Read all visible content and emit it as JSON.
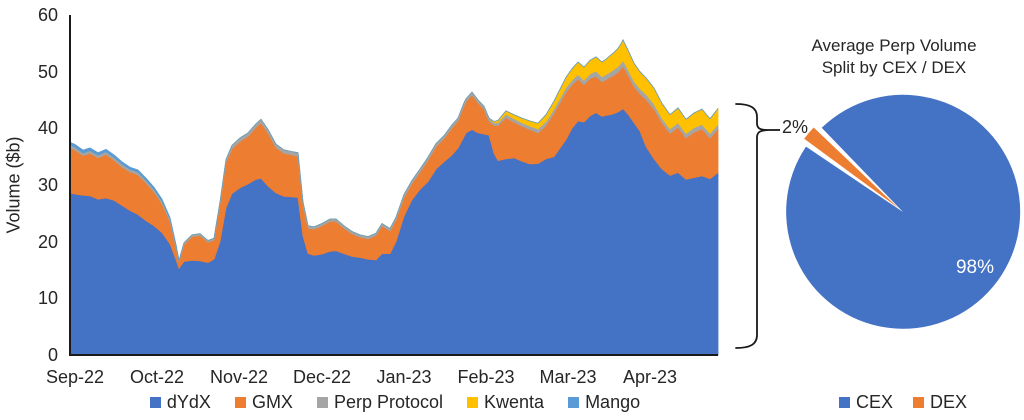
{
  "page": {
    "background": "#ffffff"
  },
  "chart_data": [
    {
      "type": "area",
      "stacked": true,
      "title": "",
      "xlabel": "",
      "ylabel": "Volume ($b)",
      "ylim": [
        0,
        60
      ],
      "grid": false,
      "legend_position": "bottom",
      "y_tick_labels": [
        "60",
        "50",
        "40",
        "30",
        "20",
        "10",
        "0"
      ],
      "x_tick_labels": [
        "Sep-22",
        "Oct-22",
        "Nov-22",
        "Dec-22",
        "Jan-23",
        "Feb-23",
        "Mar-23",
        "Apr-23"
      ],
      "x_unit": "time from Sep-2022 to Apr-2023, sampled ~every 3 days (plot-offset units)",
      "x": [
        0,
        5,
        13,
        20,
        28,
        36,
        44,
        52,
        60,
        68,
        76,
        84,
        92,
        100,
        106,
        109,
        114,
        122,
        130,
        138,
        144,
        150,
        156,
        162,
        170,
        178,
        186,
        191,
        198,
        206,
        214,
        222,
        228,
        233,
        238,
        244,
        252,
        260,
        266,
        274,
        282,
        290,
        298,
        306,
        312,
        320,
        326,
        334,
        342,
        350,
        358,
        366,
        374,
        382,
        388,
        394,
        396,
        402,
        408,
        414,
        419,
        424,
        428,
        436,
        444,
        452,
        460,
        468,
        476,
        484,
        490,
        496,
        502,
        508,
        514,
        520,
        526,
        532,
        536,
        540,
        544,
        548,
        551,
        553,
        558,
        564,
        570,
        576,
        584,
        592,
        600,
        608,
        616,
        624,
        632,
        640,
        648
      ],
      "series": [
        {
          "name": "dYdX",
          "color": "#4472C4",
          "values": [
            28.6,
            28.4,
            28.2,
            28.1,
            27.5,
            27.7,
            27.3,
            26.4,
            25.5,
            24.8,
            23.7,
            22.8,
            21.6,
            19.6,
            16.8,
            15.3,
            16.5,
            16.7,
            16.6,
            16.3,
            16.9,
            20,
            26,
            28.5,
            29.5,
            30.2,
            31,
            31.2,
            29.8,
            28.6,
            28,
            27.9,
            27.8,
            21,
            17.9,
            17.6,
            17.8,
            18.3,
            18.4,
            17.9,
            17.4,
            17.2,
            16.9,
            16.8,
            17.9,
            17.9,
            20,
            24.5,
            27.4,
            29.2,
            30.6,
            32.8,
            34.1,
            35.3,
            36.5,
            38.5,
            39.2,
            39.8,
            39.2,
            39,
            38.8,
            35.6,
            34.3,
            34.6,
            34.8,
            34.2,
            33.7,
            33.8,
            34.6,
            35,
            36.5,
            38,
            40,
            41.3,
            41.1,
            42.2,
            42.8,
            42.1,
            42.3,
            42.4,
            42.6,
            42.9,
            43.2,
            43.5,
            42.5,
            41,
            39.5,
            36.8,
            34.6,
            32.8,
            31.7,
            32.2,
            31,
            31.3,
            31.6,
            31.1,
            32.2
          ]
        },
        {
          "name": "GMX",
          "color": "#ED7D31",
          "values": [
            8,
            7.8,
            7,
            7.5,
            7.3,
            7.7,
            7.1,
            6.8,
            6.8,
            7,
            6.7,
            6,
            5.1,
            4,
            2.2,
            1.1,
            3,
            4.2,
            4.5,
            3.6,
            3.4,
            6.6,
            8,
            7.9,
            8.2,
            8.4,
            9.2,
            9.8,
            9.4,
            8,
            7.6,
            7.4,
            7.3,
            5.5,
            4.5,
            4.6,
            5,
            5.3,
            5.2,
            4.5,
            4,
            3.6,
            3.6,
            4.3,
            4.9,
            4,
            3.9,
            3.3,
            2.9,
            3.1,
            3.8,
            4,
            4.1,
            4.8,
            4.8,
            5.5,
            5.5,
            6.1,
            5.3,
            4.4,
            2.5,
            4.9,
            6.2,
            7.3,
            6.3,
            6.2,
            6.1,
            5.4,
            5.9,
            7.7,
            8,
            8.4,
            7.7,
            7.4,
            6.6,
            6.6,
            6.4,
            6.1,
            6.3,
            6.6,
            6.8,
            7,
            7.3,
            7.5,
            6.9,
            6.4,
            6.6,
            8.3,
            8.8,
            8.2,
            7.4,
            8,
            7.3,
            8,
            8.3,
            7.2,
            7.7
          ]
        },
        {
          "name": "Perp Protocol",
          "color": "#A5A5A5",
          "values": [
            0.45,
            0.45,
            0.45,
            0.45,
            0.45,
            0.45,
            0.45,
            0.45,
            0.45,
            0.45,
            0.4,
            0.4,
            0.4,
            0.35,
            0.3,
            0.2,
            0.3,
            0.3,
            0.3,
            0.3,
            0.3,
            0.4,
            0.5,
            0.6,
            0.6,
            0.6,
            0.6,
            0.6,
            0.6,
            0.6,
            0.6,
            0.6,
            0.6,
            0.5,
            0.4,
            0.4,
            0.4,
            0.4,
            0.4,
            0.4,
            0.4,
            0.4,
            0.4,
            0.4,
            0.4,
            0.4,
            0.4,
            0.5,
            0.5,
            0.5,
            0.5,
            0.5,
            0.5,
            0.5,
            0.5,
            0.5,
            0.5,
            0.5,
            0.5,
            0.5,
            0.5,
            0.5,
            0.5,
            0.6,
            0.6,
            0.6,
            0.6,
            0.7,
            0.7,
            0.7,
            0.8,
            0.8,
            0.8,
            0.8,
            0.8,
            0.8,
            0.9,
            0.9,
            0.9,
            0.9,
            1,
            1,
            1,
            1,
            1,
            0.9,
            0.9,
            0.9,
            0.9,
            0.8,
            0.8,
            0.8,
            0.8,
            0.8,
            0.8,
            0.8,
            0.8
          ]
        },
        {
          "name": "Kwenta",
          "color": "#FFC000",
          "values": [
            0,
            0,
            0,
            0,
            0,
            0,
            0,
            0,
            0,
            0,
            0,
            0,
            0,
            0,
            0,
            0,
            0,
            0,
            0,
            0,
            0,
            0,
            0,
            0,
            0,
            0,
            0,
            0,
            0,
            0,
            0,
            0,
            0,
            0,
            0,
            0,
            0,
            0,
            0,
            0,
            0,
            0,
            0,
            0,
            0,
            0,
            0,
            0,
            0,
            0,
            0,
            0,
            0,
            0,
            0,
            0,
            0,
            0,
            0,
            0,
            0,
            0.2,
            0.4,
            0.6,
            0.7,
            0.8,
            0.9,
            1,
            1.2,
            1.4,
            1.6,
            1.8,
            2,
            2.2,
            2.3,
            2.4,
            2.5,
            2.6,
            2.7,
            2.9,
            3,
            3.2,
            3.4,
            3.6,
            3.4,
            3.2,
            3,
            2.9,
            2.8,
            2.6,
            2.5,
            2.6,
            2.5,
            2.6,
            2.7,
            2.6,
            2.8
          ]
        },
        {
          "name": "Mango",
          "color": "#5B9BD5",
          "values": [
            0.5,
            0.5,
            0.5,
            0.5,
            0.45,
            0.45,
            0.45,
            0.45,
            0.4,
            0.4,
            0.4,
            0.4,
            0.4,
            0.3,
            0.2,
            0.1,
            0,
            0,
            0,
            0,
            0,
            0,
            0,
            0,
            0,
            0,
            0,
            0,
            0,
            0,
            0,
            0,
            0,
            0,
            0,
            0,
            0,
            0,
            0,
            0,
            0,
            0,
            0,
            0,
            0,
            0,
            0,
            0,
            0,
            0,
            0,
            0,
            0,
            0,
            0,
            0,
            0,
            0,
            0,
            0,
            0,
            0,
            0,
            0,
            0,
            0,
            0,
            0,
            0,
            0,
            0,
            0,
            0,
            0,
            0,
            0,
            0,
            0,
            0,
            0,
            0,
            0,
            0,
            0,
            0,
            0,
            0,
            0,
            0,
            0,
            0,
            0,
            0,
            0,
            0,
            0,
            0
          ]
        }
      ]
    },
    {
      "type": "pie",
      "title_lines": [
        "Average Perp Volume",
        "Split by CEX / DEX"
      ],
      "labels": [
        "CEX",
        "DEX"
      ],
      "values": [
        98,
        2
      ],
      "colors": [
        "#4472C4",
        "#ED7D31"
      ],
      "data_labels": [
        "98%",
        "2%"
      ],
      "legend_position": "bottom",
      "dex_slice_center_angle_deg": 140,
      "dex_slice_exploded": true
    }
  ]
}
